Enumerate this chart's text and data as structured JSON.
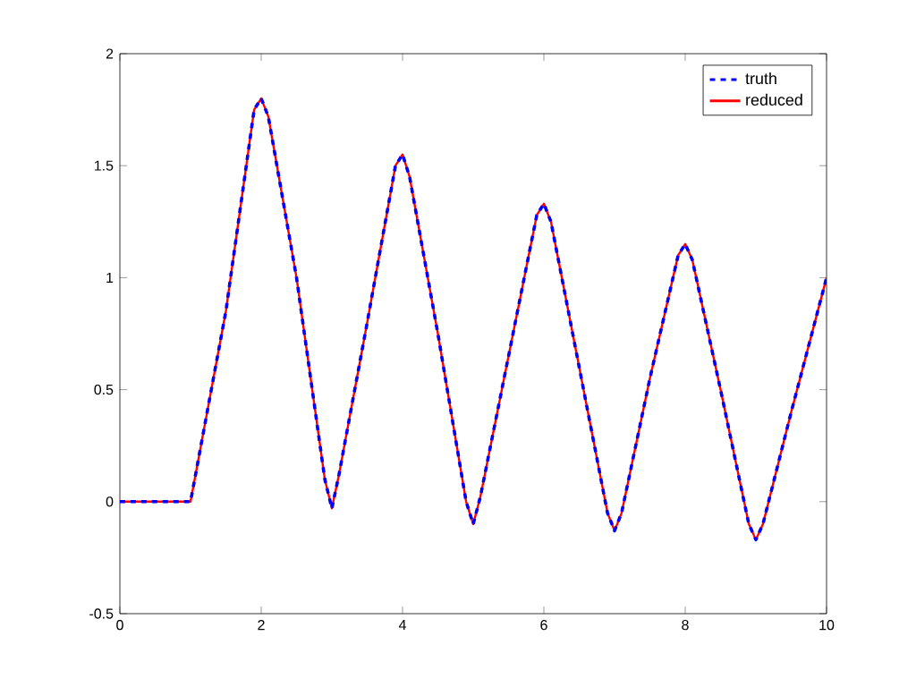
{
  "chart_data": {
    "type": "line",
    "xlim": [
      0,
      10
    ],
    "ylim": [
      -0.5,
      2
    ],
    "xticks": [
      0,
      2,
      4,
      6,
      8,
      10
    ],
    "yticks": [
      -0.5,
      0,
      0.5,
      1,
      1.5,
      2
    ],
    "grid": false,
    "legend": "top right",
    "marker": "none",
    "x": [
      0,
      0.5,
      1,
      1.5,
      1.9,
      2,
      2.1,
      2.5,
      2.9,
      3,
      3.1,
      3.5,
      3.9,
      4,
      4.1,
      4.5,
      4.9,
      5,
      5.1,
      5.5,
      5.9,
      6,
      6.1,
      6.5,
      6.9,
      7,
      7.1,
      7.5,
      7.9,
      8,
      8.1,
      8.5,
      8.9,
      9,
      9.1,
      9.5,
      10
    ],
    "series": [
      {
        "name": "truth",
        "color": "#0000ff",
        "line_style": "dashed",
        "values": [
          0,
          0,
          0,
          0.85,
          1.75,
          1.8,
          1.72,
          1.0,
          0.1,
          -0.03,
          0.12,
          0.8,
          1.5,
          1.55,
          1.45,
          0.75,
          0.0,
          -0.1,
          0.02,
          0.65,
          1.28,
          1.33,
          1.25,
          0.6,
          -0.05,
          -0.13,
          -0.05,
          0.55,
          1.1,
          1.15,
          1.08,
          0.5,
          -0.1,
          -0.17,
          -0.1,
          0.4,
          1.0
        ]
      },
      {
        "name": "reduced",
        "color": "#ff0000",
        "line_style": "solid",
        "values": [
          0,
          0,
          0,
          0.85,
          1.75,
          1.8,
          1.72,
          1.0,
          0.1,
          -0.03,
          0.12,
          0.8,
          1.5,
          1.55,
          1.45,
          0.75,
          0.0,
          -0.1,
          0.02,
          0.65,
          1.28,
          1.33,
          1.25,
          0.6,
          -0.05,
          -0.13,
          -0.05,
          0.55,
          1.1,
          1.15,
          1.08,
          0.5,
          -0.1,
          -0.17,
          -0.1,
          0.4,
          1.0
        ]
      }
    ]
  }
}
